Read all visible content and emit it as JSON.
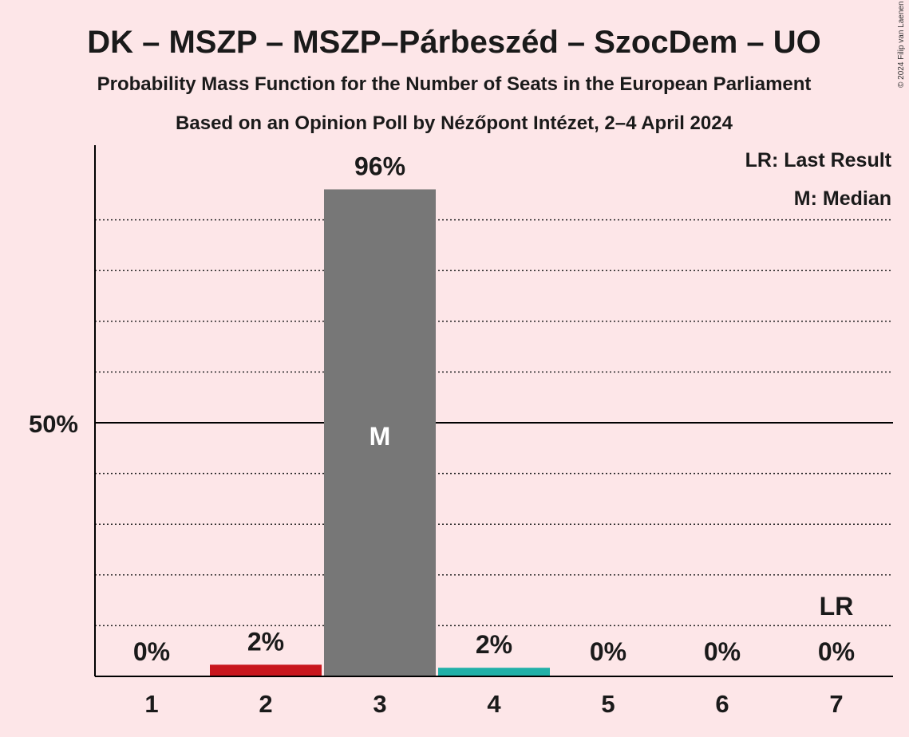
{
  "chart_data": {
    "type": "bar",
    "title": "DK – MSZP – MSZP–Párbeszéd – SzocDem – UO",
    "subtitle": "Probability Mass Function for the Number of Seats in the European Parliament",
    "subtitle2": "Based on an Opinion Poll by Nézőpont Intézet, 2–4 April 2024",
    "copyright": "© 2024 Filip van Laenen",
    "legend": {
      "last_result": "LR: Last Result",
      "median": "M: Median",
      "placement": "top-right"
    },
    "categories": [
      "1",
      "2",
      "3",
      "4",
      "5",
      "6",
      "7"
    ],
    "values": [
      0,
      2.3,
      96,
      1.7,
      0,
      0,
      0
    ],
    "labels": [
      "0%",
      "2%",
      "96%",
      "2%",
      "0%",
      "0%",
      "0%"
    ],
    "colors": [
      "#c8161d",
      "#c8161d",
      "#777777",
      "#21b0a8",
      "#777777",
      "#777777",
      "#777777"
    ],
    "y_tick_label": "50%",
    "y_tick_value": 50,
    "ylim": [
      0,
      105
    ],
    "grid": true,
    "median_category": "3",
    "median_mark": "M",
    "last_result_category": "7",
    "last_result_mark": "LR"
  }
}
